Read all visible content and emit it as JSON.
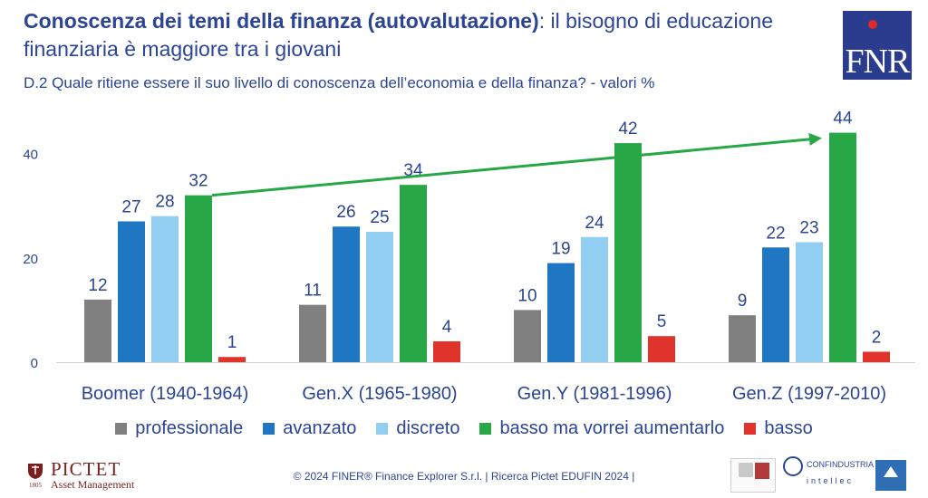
{
  "header": {
    "title_bold": "Conoscenza dei temi della finanza (autovalutazione)",
    "title_rest": ": il bisogno di educazione finanziaria è maggiore tra i giovani",
    "subtitle": "D.2 Quale ritiene essere il suo livello di conoscenza dell’economia e della finanza? - valori %",
    "logo_text": "FNR"
  },
  "chart_data": {
    "type": "bar",
    "categories": [
      "Boomer (1940-1964)",
      "Gen.X (1965-1980)",
      "Gen.Y (1981-1996)",
      "Gen.Z (1997-2010)"
    ],
    "series": [
      {
        "name": "professionale",
        "color": "#808080",
        "values": [
          12,
          11,
          10,
          9
        ]
      },
      {
        "name": "avanzato",
        "color": "#1f77c4",
        "values": [
          27,
          26,
          19,
          22
        ]
      },
      {
        "name": "discreto",
        "color": "#92cdf2",
        "values": [
          28,
          25,
          24,
          23
        ]
      },
      {
        "name": "basso ma vorrei aumentarlo",
        "color": "#27a745",
        "values": [
          32,
          34,
          42,
          44
        ]
      },
      {
        "name": "basso",
        "color": "#e0332b",
        "values": [
          1,
          4,
          5,
          2
        ]
      }
    ],
    "yticks": [
      0,
      20,
      40
    ],
    "ylim": [
      0,
      50
    ],
    "trend_arrow": {
      "series": "basso ma vorrei aumentarlo",
      "from_category": "Boomer (1940-1964)",
      "to_category": "Gen.Z (1997-2010)",
      "color": "#27a745"
    },
    "legend_position": "bottom",
    "grid": false
  },
  "footer": {
    "text": "© 2024 FINER® Finance Explorer S.r.l. | Ricerca Pictet EDUFIN 2024 |"
  },
  "brand": {
    "pictet_name": "PICTET",
    "pictet_sub": "Asset Management",
    "pictet_year": "1805",
    "confindustria": "CONFINDUSTRIA",
    "intellec": "intellec"
  }
}
